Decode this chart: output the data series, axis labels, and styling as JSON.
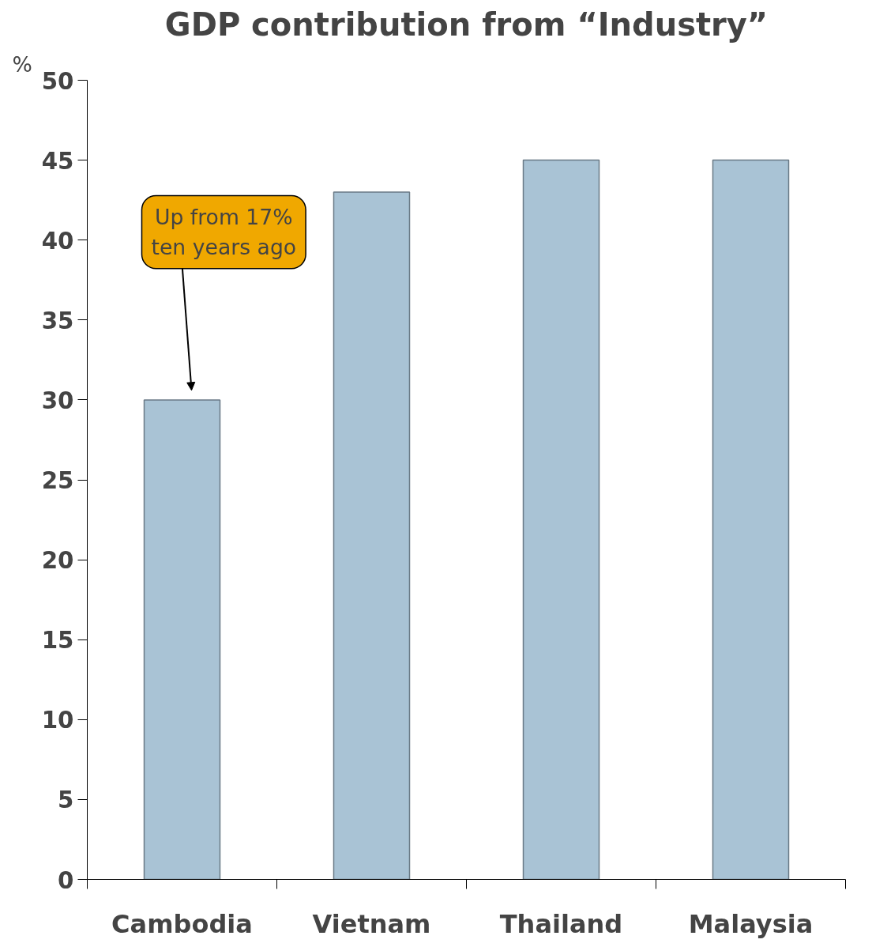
{
  "chart_data": {
    "type": "bar",
    "title": "GDP contribution from “Industry”",
    "ylabel": "%",
    "categories": [
      "Cambodia",
      "Vietnam",
      "Thailand",
      "Malaysia"
    ],
    "values": [
      30,
      43,
      45,
      45
    ],
    "color": "#a9c3d5",
    "ylim": [
      0,
      50
    ],
    "yticks": [
      0,
      5,
      10,
      15,
      20,
      25,
      30,
      35,
      40,
      45,
      50
    ],
    "grid": false,
    "annotations": [
      "Up from 17%\nten years ago"
    ]
  }
}
